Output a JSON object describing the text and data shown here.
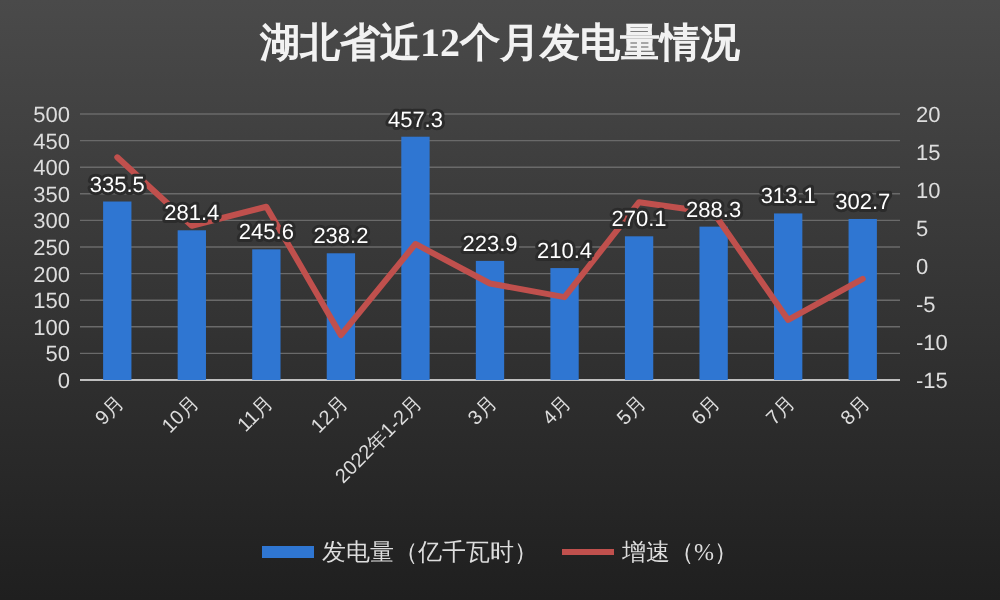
{
  "chart_data": {
    "type": "bar",
    "title": "湖北省近12个月发电量情况",
    "categories": [
      "9月",
      "10月",
      "11月",
      "12月",
      "2022年1-2月",
      "3月",
      "4月",
      "5月",
      "6月",
      "7月",
      "8月"
    ],
    "series": [
      {
        "name": "发电量（亿千瓦时）",
        "color": "#2f76d2",
        "values": [
          335.5,
          281.4,
          245.6,
          238.2,
          457.3,
          223.9,
          210.4,
          270.1,
          288.3,
          313.1,
          302.7
        ],
        "value_labels": [
          "335.5",
          "281.4",
          "245.6",
          "238.2",
          "457.3",
          "223.9",
          "210.4",
          "270.1",
          "288.3",
          "313.1",
          "302.7"
        ]
      },
      {
        "name": "增速（%）",
        "type": "line",
        "axis": "y2",
        "color": "#c0504d",
        "values": [
          14.3,
          5.3,
          7.8,
          -9.1,
          2.9,
          -2.3,
          -4.1,
          8.4,
          7.0,
          -7.1,
          -1.7
        ]
      }
    ],
    "ylim": [
      0,
      500
    ],
    "yticks": [
      0,
      50,
      100,
      150,
      200,
      250,
      300,
      350,
      400,
      450,
      500
    ],
    "y2lim": [
      -15,
      20
    ],
    "y2ticks": [
      -15,
      -10,
      -5,
      0,
      5,
      10,
      15,
      20
    ],
    "grid": "y",
    "legend": "bottom",
    "marker": "none"
  }
}
